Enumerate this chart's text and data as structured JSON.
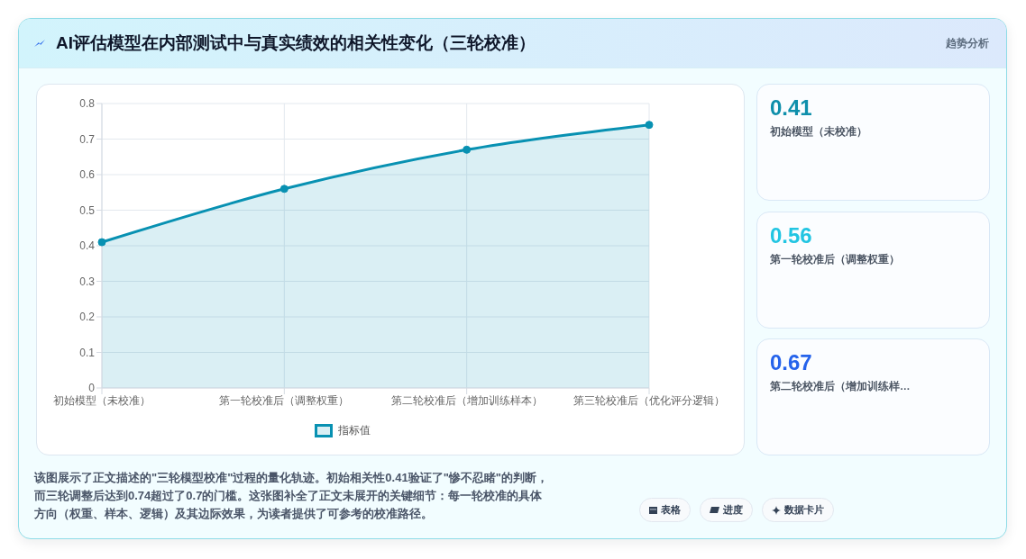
{
  "chart_data": {
    "type": "area",
    "title": "AI评估模型在内部测试中与真实绩效的相关性变化（三轮校准）",
    "subtitle": "趋势分析",
    "categories": [
      "初始模型（未校准）",
      "第一轮校准后（调整权重）",
      "第二轮校准后（增加训练样本）",
      "第三轮校准后（优化评分逻辑）"
    ],
    "series": [
      {
        "name": "指标值",
        "color": "#0891b2",
        "values": [
          0.41,
          0.56,
          0.67,
          0.74
        ]
      }
    ],
    "ylim": [
      0,
      0.8
    ],
    "yticks": [
      0,
      0.1,
      0.2,
      0.3,
      0.4,
      0.5,
      0.6,
      0.7,
      0.8
    ],
    "grid": true,
    "legend": "bottom",
    "marker": "circle",
    "annotations": [
      "该图展示了正文描述的\"三轮模型校准\"过程的量化轨迹。初始相关性0.41验证了\"惨不忍睹\"的判断，而三轮调整后达到0.74超过了0.7的门槛。这张图补全了正文未展开的关键细节：每一轮校准的具体方向（权重、样本、逻辑）及其边际效果，为读者提供了可参考的校准路径。",
      "0.41",
      "初始模型（未校准）",
      "0.56",
      "第一轮校准后（调整权重）",
      "0.67",
      "第二轮校准后（增加训练样…",
      "表格",
      "进度",
      "数据卡片"
    ]
  }
}
